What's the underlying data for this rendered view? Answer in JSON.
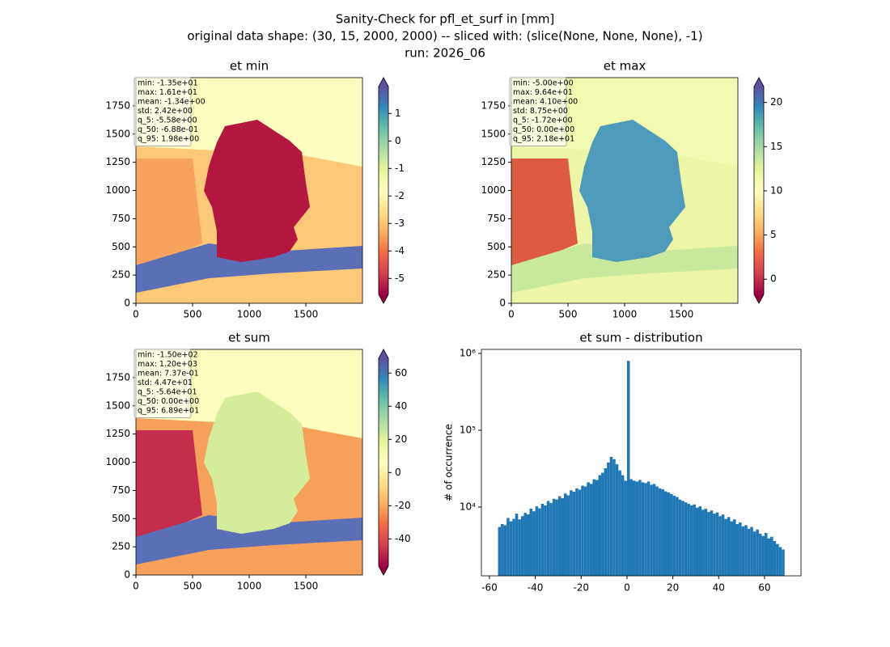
{
  "suptitle": [
    "Sanity-Check for pfl_et_surf in [mm]",
    "original data shape: (30, 15, 2000, 2000) -- sliced with: (slice(None, None, None), -1)",
    "run: 2026_06"
  ],
  "chart_data": [
    {
      "type": "heatmap",
      "title": "et min",
      "colormap": "Spectral",
      "xlim": [
        0,
        2000
      ],
      "ylim": [
        0,
        2000
      ],
      "xticks": [
        0,
        500,
        1000,
        1500
      ],
      "yticks": [
        0,
        250,
        500,
        750,
        1000,
        1250,
        1500,
        1750
      ],
      "clim": [
        -5.58,
        1.98
      ],
      "cticks": [
        -5,
        -4,
        -3,
        -2,
        -1,
        0,
        1
      ],
      "stats": [
        "min: -1.35e+01",
        "max: 1.61e+01",
        "mean: -1.34e+00",
        "std: 2.42e+00",
        "q_5: -5.58e+00",
        "q_50: -6.88e-01",
        "q_95: 1.98e+00"
      ]
    },
    {
      "type": "heatmap",
      "title": "et max",
      "colormap": "Spectral",
      "xlim": [
        0,
        2000
      ],
      "ylim": [
        0,
        2000
      ],
      "xticks": [
        0,
        500,
        1000,
        1500
      ],
      "yticks": [
        0,
        250,
        500,
        750,
        1000,
        1250,
        1500,
        1750
      ],
      "clim": [
        -1.72,
        21.8
      ],
      "cticks": [
        0,
        5,
        10,
        15,
        20
      ],
      "stats": [
        "min: -5.00e+00",
        "max: 9.64e+01",
        "mean: 4.10e+00",
        "std: 8.75e+00",
        "q_5: -1.72e+00",
        "q_50: 0.00e+00",
        "q_95: 2.18e+01"
      ]
    },
    {
      "type": "heatmap",
      "title": "et sum",
      "colormap": "Spectral",
      "xlim": [
        0,
        2000
      ],
      "ylim": [
        0,
        2000
      ],
      "xticks": [
        0,
        500,
        1000,
        1500
      ],
      "yticks": [
        0,
        250,
        500,
        750,
        1000,
        1250,
        1500,
        1750
      ],
      "clim": [
        -56.4,
        68.9
      ],
      "cticks": [
        -40,
        -20,
        0,
        20,
        40,
        60
      ],
      "stats": [
        "min: -1.50e+02",
        "max: 1.20e+03",
        "mean: 7.37e-01",
        "std: 4.47e+01",
        "q_5: -5.64e+01",
        "q_50: 0.00e+00",
        "q_95: 6.89e+01"
      ]
    },
    {
      "type": "histogram",
      "title": "et sum - distribution",
      "y_label": "# of occurrence",
      "color": "#1f77b4",
      "log_y": true,
      "xlim": [
        -63.5,
        75.9
      ],
      "ylim": [
        1270,
        1130000
      ],
      "xticks": [
        -60,
        -40,
        -20,
        0,
        20,
        40,
        60
      ],
      "yticks": [
        {
          "value": 10000,
          "label": "10⁴"
        },
        {
          "value": 100000,
          "label": "10⁵"
        },
        {
          "value": 1000000,
          "label": "10⁶"
        }
      ],
      "bins": [
        -56.25,
        -55,
        -53.75,
        -52.5,
        -51.25,
        -50,
        -48.75,
        -47.5,
        -46.25,
        -45,
        -43.75,
        -42.5,
        -41.25,
        -40,
        -38.75,
        -37.5,
        -36.25,
        -35,
        -33.75,
        -32.5,
        -31.25,
        -30,
        -28.75,
        -27.5,
        -26.25,
        -25,
        -23.75,
        -22.5,
        -21.25,
        -20,
        -18.75,
        -17.5,
        -16.25,
        -15,
        -13.75,
        -12.5,
        -11.25,
        -10,
        -8.75,
        -7.5,
        -6.25,
        -5,
        -3.75,
        -2.5,
        -1.25,
        0,
        1.25,
        2.5,
        3.75,
        5,
        6.25,
        7.5,
        8.75,
        10,
        11.25,
        12.5,
        13.75,
        15,
        16.25,
        17.5,
        18.75,
        20,
        21.25,
        22.5,
        23.75,
        25,
        26.25,
        27.5,
        28.75,
        30,
        31.25,
        32.5,
        33.75,
        35,
        36.25,
        37.5,
        38.75,
        40,
        41.25,
        42.5,
        43.75,
        45,
        46.25,
        47.5,
        48.75,
        50,
        51.25,
        52.5,
        53.75,
        55,
        56.25,
        57.5,
        58.75,
        60,
        61.25,
        62.5,
        63.75,
        65,
        66.25,
        67.5,
        68.75
      ],
      "values": [
        5500,
        6000,
        5800,
        7200,
        6500,
        7000,
        8200,
        6900,
        7600,
        8400,
        8000,
        9500,
        8800,
        10200,
        9600,
        11000,
        10500,
        12000,
        11300,
        12800,
        12500,
        13800,
        13000,
        15000,
        14200,
        16500,
        15800,
        17500,
        16800,
        19000,
        18500,
        21000,
        20000,
        23000,
        22500,
        26000,
        28000,
        32000,
        38000,
        45000,
        42000,
        36000,
        30000,
        26000,
        22000,
        800000,
        23000,
        22000,
        21500,
        22500,
        21000,
        20500,
        21500,
        19500,
        20000,
        18500,
        17500,
        17000,
        16000,
        15500,
        14800,
        14000,
        13500,
        12500,
        12000,
        11500,
        11000,
        10500,
        10800,
        9800,
        10200,
        9200,
        9500,
        8600,
        9000,
        8200,
        8500,
        7600,
        8000,
        7000,
        7400,
        6500,
        6900,
        6000,
        6300,
        5600,
        5800,
        5200,
        5500,
        4800,
        5100,
        4500,
        4200,
        4600,
        3900,
        4100,
        3600,
        3300,
        3000,
        2800
      ]
    }
  ]
}
